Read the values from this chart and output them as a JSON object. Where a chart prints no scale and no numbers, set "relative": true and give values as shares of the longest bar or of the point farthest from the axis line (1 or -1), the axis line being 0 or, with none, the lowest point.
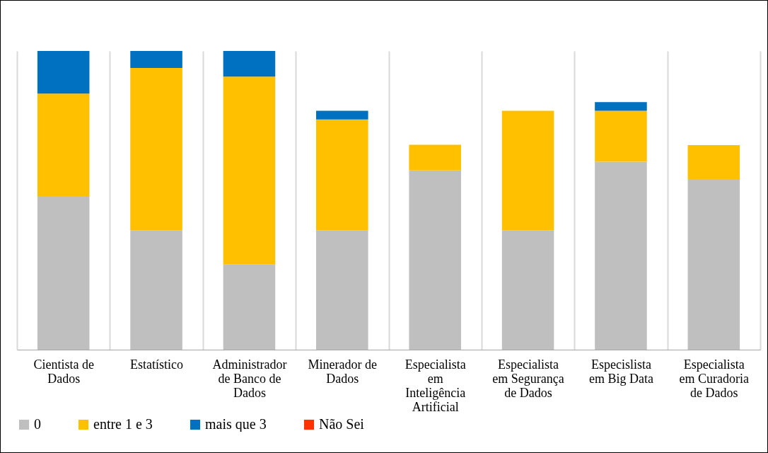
{
  "chart_data": {
    "type": "bar",
    "stacked": true,
    "relative": true,
    "grid": "x",
    "legend": "bottom",
    "categories": [
      "Cientista de Dados",
      "Estatístico",
      "Administrador de Banco de Dados",
      "Minerador de Dados",
      "Especialista em Inteligência Artificial",
      "Especialista em Segurança de Dados",
      "Especislista em Big Data",
      "Especialista em Curadoria de Dados"
    ],
    "series": [
      {
        "name": "0",
        "color": "#bfbfbf",
        "values": [
          0.514,
          0.4,
          0.285,
          0.4,
          0.6,
          0.4,
          0.629,
          0.571
        ]
      },
      {
        "name": "entre 1 e 3",
        "color": "#ffc000",
        "values": [
          0.343,
          0.543,
          0.629,
          0.371,
          0.086,
          0.4,
          0.171,
          0.114
        ]
      },
      {
        "name": "mais que 3",
        "color": "#0070c0",
        "values": [
          0.143,
          0.057,
          0.086,
          0.029,
          null,
          null,
          0.029,
          null
        ]
      },
      {
        "name": "Não Sei",
        "color": "#ff3300",
        "values": [
          null,
          null,
          null,
          null,
          null,
          null,
          null,
          null
        ]
      }
    ]
  }
}
